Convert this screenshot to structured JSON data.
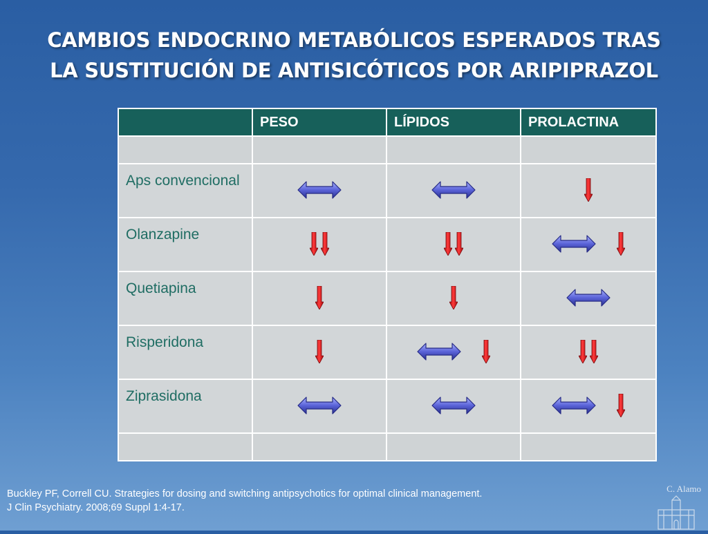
{
  "title": {
    "line1": "CAMBIOS ENDOCRINO METABÓLICOS ESPERADOS TRAS",
    "line2": "LA SUSTITUCIÓN DE ANTISICÓTICOS POR ARIPIPRAZOL"
  },
  "table": {
    "headers": [
      "",
      "PESO",
      "LÍPIDOS",
      "PROLACTINA"
    ],
    "rows": [
      {
        "label": "Aps convencional",
        "peso": [
          "no-change-arrow"
        ],
        "lipidos": [
          "no-change-arrow"
        ],
        "prolactina": [
          "decrease-arrow"
        ]
      },
      {
        "label": "Olanzapine",
        "peso": [
          "marked-decrease-arrows"
        ],
        "lipidos": [
          "marked-decrease-arrows"
        ],
        "prolactina": [
          "no-change-arrow",
          "decrease-arrow"
        ]
      },
      {
        "label": "Quetiapina",
        "peso": [
          "decrease-arrow"
        ],
        "lipidos": [
          "decrease-arrow"
        ],
        "prolactina": [
          "no-change-arrow"
        ]
      },
      {
        "label": "Risperidona",
        "peso": [
          "decrease-arrow"
        ],
        "lipidos": [
          "no-change-arrow",
          "decrease-arrow"
        ],
        "prolactina": [
          "marked-decrease-arrows"
        ]
      },
      {
        "label": "Ziprasidona",
        "peso": [
          "no-change-arrow"
        ],
        "lipidos": [
          "no-change-arrow"
        ],
        "prolactina": [
          "no-change-arrow",
          "decrease-arrow"
        ]
      }
    ]
  },
  "reference": {
    "line1": "Buckley PF, Correll CU. Strategies for dosing and switching antipsychotics for optimal clinical management.",
    "line2": "J Clin Psychiatry. 2008;69 Suppl 1:4-17."
  },
  "watermark": "C. Alamo",
  "colors": {
    "header_bg": "#17605a",
    "cell_bg": "#d2d6d8",
    "label_text": "#1f6d63",
    "decrease_arrow": "#e8141b",
    "no_change_arrow": "#5a63d8"
  }
}
